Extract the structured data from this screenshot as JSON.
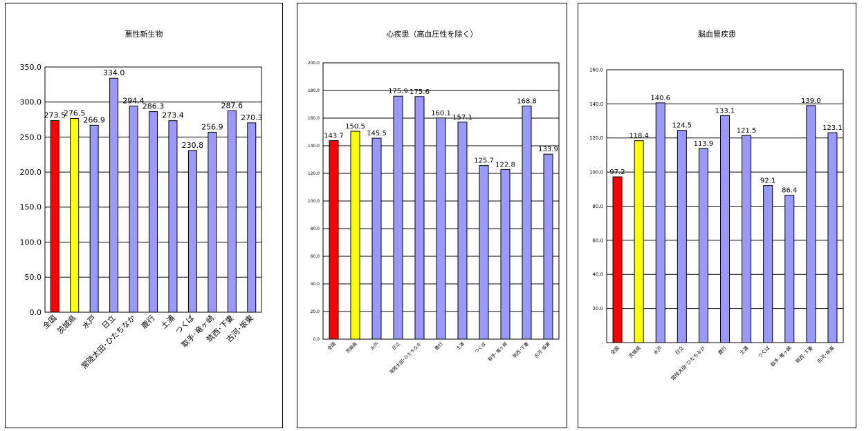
{
  "colors": {
    "national": "#ff0000",
    "prefecture": "#ffff00",
    "region": "#9999ff",
    "edge": "#000000"
  },
  "chart_data": [
    {
      "type": "bar",
      "title": "悪性新生物",
      "categories": [
        "全国",
        "茨城県",
        "水戸",
        "日立",
        "常陸太田･ひたちなか",
        "鹿行",
        "土浦",
        "つくば",
        "取手･竜ヶ崎",
        "筑西･下妻",
        "古河･坂東"
      ],
      "values": [
        273.5,
        276.5,
        266.9,
        334.0,
        294.4,
        286.3,
        273.4,
        230.8,
        256.9,
        287.6,
        270.3
      ],
      "value_labels": [
        "273.5",
        "276.5",
        "266.9",
        "334.0",
        "294.4",
        "286.3",
        "273.4",
        "230.8",
        "256.9",
        "287.6",
        "270.3"
      ],
      "ylim": [
        0,
        350
      ],
      "yticks": [
        "0.0",
        "50.0",
        "100.0",
        "150.0",
        "200.0",
        "250.0",
        "300.0",
        "350.0"
      ],
      "ytick_step": 50,
      "grid": true,
      "legend": "none",
      "bar_colors": [
        "national",
        "prefecture",
        "region",
        "region",
        "region",
        "region",
        "region",
        "region",
        "region",
        "region",
        "region"
      ]
    },
    {
      "type": "bar",
      "title": "心疾患（高血圧性を除く）",
      "categories": [
        "全国",
        "茨城県",
        "水戸",
        "日立",
        "常陸太田･ひたちなか",
        "鹿行",
        "土浦",
        "つくば",
        "取手･竜ヶ崎",
        "筑西･下妻",
        "古河･坂東"
      ],
      "values": [
        143.7,
        150.5,
        145.5,
        175.9,
        175.6,
        160.1,
        157.1,
        125.7,
        122.8,
        168.8,
        133.9
      ],
      "value_labels": [
        "143.7",
        "150.5",
        "145.5",
        "175.9",
        "175.6",
        "160.1",
        "157.1",
        "125.7",
        "122.8",
        "168.8",
        "133.9"
      ],
      "ylim": [
        0,
        200
      ],
      "yticks": [
        "0.0",
        "20.0",
        "40.0",
        "60.0",
        "80.0",
        "100.0",
        "120.0",
        "140.0",
        "160.0",
        "180.0",
        "200.0"
      ],
      "ytick_step": 20,
      "grid": true,
      "legend": "none",
      "bar_colors": [
        "national",
        "prefecture",
        "region",
        "region",
        "region",
        "region",
        "region",
        "region",
        "region",
        "region",
        "region"
      ]
    },
    {
      "type": "bar",
      "title": "脳血管疾患",
      "categories": [
        "全国",
        "茨城県",
        "水戸",
        "日立",
        "常陸太田･ひたちなか",
        "鹿行",
        "土浦",
        "つくば",
        "取手･竜ヶ崎",
        "筑西･下妻",
        "古河･坂東"
      ],
      "values": [
        97.2,
        118.4,
        140.6,
        124.5,
        113.9,
        133.1,
        121.5,
        92.1,
        86.4,
        139.0,
        123.1
      ],
      "value_labels": [
        "97.2",
        "118.4",
        "140.6",
        "124.5",
        "113.9",
        "133.1",
        "121.5",
        "92.1",
        "86.4",
        "139.0",
        "123.1"
      ],
      "ylim": [
        0,
        160
      ],
      "yticks": [
        "-",
        "20.0",
        "40.0",
        "60.0",
        "80.0",
        "100.0",
        "120.0",
        "140.0",
        "160.0"
      ],
      "ytick_step": 20,
      "grid": true,
      "legend": "none",
      "bar_colors": [
        "national",
        "prefecture",
        "region",
        "region",
        "region",
        "region",
        "region",
        "region",
        "region",
        "region",
        "region"
      ]
    }
  ]
}
